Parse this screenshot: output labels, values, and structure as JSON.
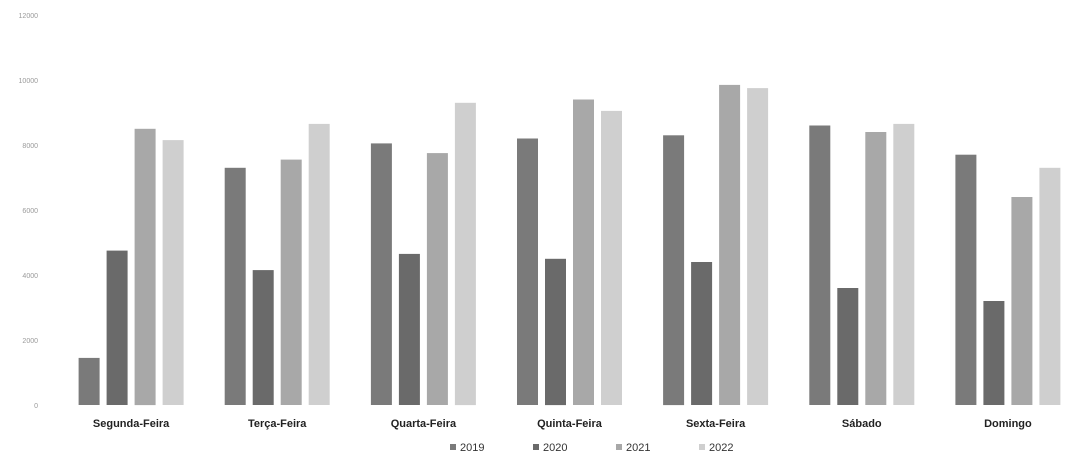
{
  "chart_data": {
    "type": "bar",
    "title": "",
    "xlabel": "",
    "ylabel": "",
    "ylim": [
      0,
      12000
    ],
    "yticks": [
      0,
      2000,
      4000,
      6000,
      8000,
      10000,
      12000
    ],
    "ytick_labels": [
      "0",
      "2000",
      "4000",
      "6000",
      "8000",
      "10000",
      "12000"
    ],
    "grid": false,
    "legend_position": "bottom",
    "categories": [
      "Segunda-Feira",
      "Terça-Feira",
      "Quarta-Feira",
      "Quinta-Feira",
      "Sexta-Feira",
      "Sábado",
      "Domingo"
    ],
    "series": [
      {
        "name": "2019",
        "color": "#7a7a7a",
        "values": [
          1450,
          7300,
          8050,
          8200,
          8300,
          8600,
          7700
        ]
      },
      {
        "name": "2020",
        "color": "#6a6a6a",
        "values": [
          4750,
          4150,
          4650,
          4500,
          4400,
          3600,
          3200
        ]
      },
      {
        "name": "2021",
        "color": "#a8a8a8",
        "values": [
          8500,
          7550,
          7750,
          9400,
          9850,
          8400,
          6400
        ]
      },
      {
        "name": "2022",
        "color": "#cfcfcf",
        "values": [
          8150,
          8650,
          9300,
          9050,
          9750,
          8650,
          7300
        ]
      }
    ]
  }
}
